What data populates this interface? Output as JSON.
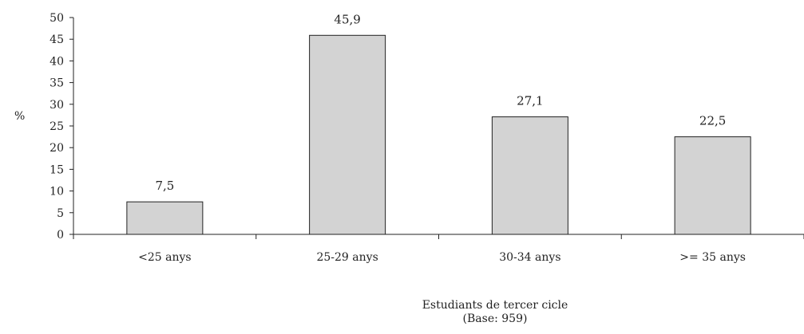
{
  "chart_data": {
    "type": "bar",
    "categories": [
      "<25 anys",
      "25-29 anys",
      "30-34 anys",
      ">= 35 anys"
    ],
    "values": [
      7.5,
      45.9,
      27.1,
      22.5
    ],
    "data_labels": [
      "7,5",
      "45,9",
      "27,1",
      "22,5"
    ],
    "ylabel": "%",
    "xlabel": "Estudiants de tercer cicle",
    "xlabel_sub": "(Base: 959)",
    "ylim": [
      0,
      50
    ],
    "yticks": [
      0,
      5,
      10,
      15,
      20,
      25,
      30,
      35,
      40,
      45,
      50
    ],
    "grid": false,
    "bar_color": "#d3d3d3",
    "bar_edge_color": "#222222"
  }
}
